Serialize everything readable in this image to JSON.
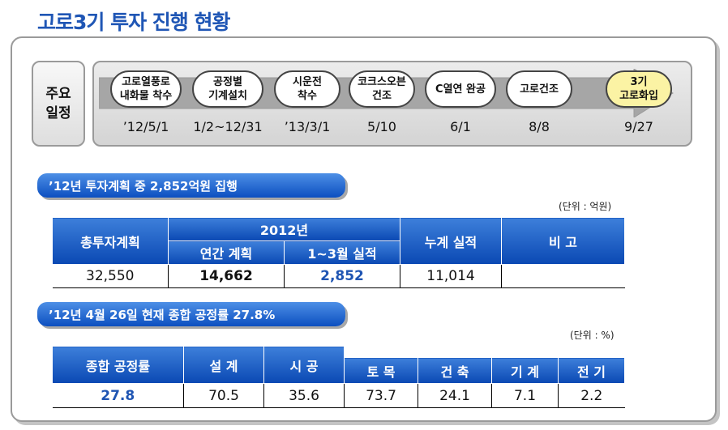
{
  "title": "고로3기 투자 진행 현황",
  "schedule": {
    "label": "주요\n일정",
    "milestones": [
      {
        "label": "고로열풍로\n내화물 착수",
        "date": "’12/5/1"
      },
      {
        "label": "공정별\n기계설치",
        "date": "1/2~12/31"
      },
      {
        "label": "시운전\n착수",
        "date": "’13/3/1"
      },
      {
        "label": "코크스오븐\n건조",
        "date": "5/10"
      },
      {
        "label": "C열연 완공",
        "date": "6/1"
      },
      {
        "label": "고로건조",
        "date": "8/8"
      },
      {
        "label": "3기\n고로화입",
        "date": "9/27"
      }
    ]
  },
  "investment": {
    "heading": "’12년 투자계획 중 2,852억원 집행",
    "unit": "(단위 : 억원)",
    "headers": {
      "total": "총투자계획",
      "year": "2012년",
      "annual_plan": "연간 계획",
      "q1_result": "1~3월 실적",
      "cumulative": "누계 실적",
      "remark": "비 고"
    },
    "row": {
      "total": "32,550",
      "annual_plan": "14,662",
      "q1_result": "2,852",
      "cumulative": "11,014",
      "remark": ""
    }
  },
  "progress": {
    "heading": "’12년 4월 26일 현재 종합 공정률 27.8%",
    "unit": "(단위 : %)",
    "headers": {
      "overall": "종합 공정률",
      "design": "설 계",
      "construction": "시 공",
      "civil": "토 목",
      "building": "건 축",
      "mechanical": "기 계",
      "electrical": "전 기"
    },
    "row": {
      "overall": "27.8",
      "design": "70.5",
      "construction": "35.6",
      "civil": "73.7",
      "building": "24.1",
      "mechanical": "7.1",
      "electrical": "2.2"
    }
  }
}
